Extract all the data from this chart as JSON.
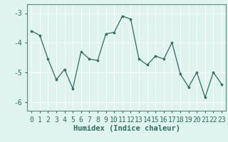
{
  "x": [
    0,
    1,
    2,
    3,
    4,
    5,
    6,
    7,
    8,
    9,
    10,
    11,
    12,
    13,
    14,
    15,
    16,
    17,
    18,
    19,
    20,
    21,
    22,
    23
  ],
  "y": [
    -3.6,
    -3.75,
    -4.55,
    -5.25,
    -4.9,
    -5.55,
    -4.3,
    -4.55,
    -4.6,
    -3.7,
    -3.65,
    -3.1,
    -3.2,
    -4.55,
    -4.75,
    -4.45,
    -4.55,
    -4.0,
    -5.05,
    -5.5,
    -5.0,
    -5.85,
    -5.0,
    -5.4
  ],
  "line_color": "#2d6b5e",
  "marker": "*",
  "marker_size": 3,
  "bg_color": "#dff4ef",
  "grid_color": "#ffffff",
  "xlabel": "Humidex (Indice chaleur)",
  "xlim": [
    -0.5,
    23.5
  ],
  "ylim": [
    -6.3,
    -2.7
  ],
  "yticks": [
    -6,
    -5,
    -4,
    -3
  ],
  "xticks": [
    0,
    1,
    2,
    3,
    4,
    5,
    6,
    7,
    8,
    9,
    10,
    11,
    12,
    13,
    14,
    15,
    16,
    17,
    18,
    19,
    20,
    21,
    22,
    23
  ],
  "xtick_labels": [
    "0",
    "1",
    "2",
    "3",
    "4",
    "5",
    "6",
    "7",
    "8",
    "9",
    "10",
    "11",
    "12",
    "13",
    "14",
    "15",
    "16",
    "17",
    "18",
    "19",
    "20",
    "21",
    "22",
    "23"
  ],
  "tick_color": "#2d6b5e",
  "xlabel_fontsize": 7.5,
  "tick_fontsize": 7,
  "spine_color": "#5a8a7a",
  "grid_linewidth": 0.8,
  "line_width": 0.9
}
